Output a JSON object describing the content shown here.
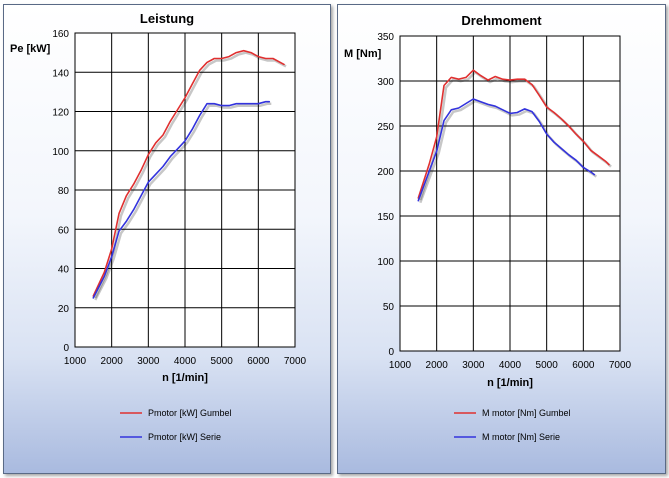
{
  "chart_data": [
    {
      "type": "line",
      "title": "Leistung",
      "xlabel": "n [1/min]",
      "ylabel": "Pe [kW]",
      "xlim": [
        1000,
        7000
      ],
      "ylim": [
        0,
        160
      ],
      "xticks": [
        1000,
        2000,
        3000,
        4000,
        5000,
        6000,
        7000
      ],
      "yticks": [
        0,
        20,
        40,
        60,
        80,
        100,
        120,
        140,
        160
      ],
      "grid": true,
      "legend_position": "bottom",
      "series": [
        {
          "name": "Pmotor [kW] Gumbel",
          "color": "#e03030",
          "x": [
            1500,
            1800,
            2000,
            2200,
            2400,
            2600,
            2800,
            3000,
            3200,
            3400,
            3600,
            3800,
            4000,
            4200,
            4400,
            4600,
            4800,
            5000,
            5200,
            5400,
            5600,
            5800,
            6000,
            6200,
            6400,
            6600,
            6700
          ],
          "y": [
            26,
            38,
            50,
            68,
            77,
            83,
            90,
            98,
            104,
            108,
            115,
            121,
            127,
            134,
            141,
            145,
            147,
            147,
            148,
            150,
            151,
            150,
            148,
            147,
            147,
            145,
            144
          ]
        },
        {
          "name": "Pmotor [kW] Serie",
          "color": "#3333dd",
          "x": [
            1500,
            1800,
            2000,
            2200,
            2400,
            2600,
            2800,
            3000,
            3200,
            3400,
            3600,
            3800,
            4000,
            4200,
            4400,
            4600,
            4800,
            5000,
            5200,
            5400,
            5600,
            5800,
            6000,
            6200,
            6300
          ],
          "y": [
            25,
            36,
            46,
            59,
            64,
            70,
            77,
            84,
            88,
            92,
            97,
            101,
            105,
            111,
            118,
            124,
            124,
            123,
            123,
            124,
            124,
            124,
            124,
            125,
            125
          ]
        }
      ]
    },
    {
      "type": "line",
      "title": "Drehmoment",
      "xlabel": "n [1/min]",
      "ylabel": "M [Nm]",
      "xlim": [
        1000,
        7000
      ],
      "ylim": [
        0,
        350
      ],
      "xticks": [
        1000,
        2000,
        3000,
        4000,
        5000,
        6000,
        7000
      ],
      "yticks": [
        0,
        50,
        100,
        150,
        200,
        250,
        300,
        350
      ],
      "grid": true,
      "legend_position": "bottom",
      "series": [
        {
          "name": "M motor [Nm] Gumbel",
          "color": "#e03030",
          "x": [
            1500,
            1800,
            2000,
            2200,
            2400,
            2600,
            2800,
            3000,
            3200,
            3400,
            3600,
            3800,
            4000,
            4200,
            4400,
            4600,
            4800,
            5000,
            5200,
            5400,
            5600,
            5800,
            6000,
            6200,
            6400,
            6600,
            6700
          ],
          "y": [
            170,
            208,
            238,
            295,
            304,
            302,
            304,
            312,
            306,
            301,
            305,
            302,
            301,
            302,
            302,
            296,
            284,
            271,
            265,
            258,
            250,
            241,
            233,
            223,
            217,
            211,
            207
          ]
        },
        {
          "name": "M motor [Nm] Serie",
          "color": "#3333dd",
          "x": [
            1500,
            1800,
            2000,
            2200,
            2400,
            2600,
            2800,
            3000,
            3200,
            3400,
            3600,
            3800,
            4000,
            4200,
            4400,
            4600,
            4800,
            5000,
            5200,
            5400,
            5600,
            5800,
            6000,
            6200,
            6300
          ],
          "y": [
            167,
            200,
            222,
            256,
            268,
            270,
            275,
            280,
            277,
            274,
            272,
            268,
            264,
            265,
            269,
            266,
            255,
            241,
            232,
            225,
            218,
            212,
            204,
            199,
            196
          ]
        }
      ]
    }
  ]
}
